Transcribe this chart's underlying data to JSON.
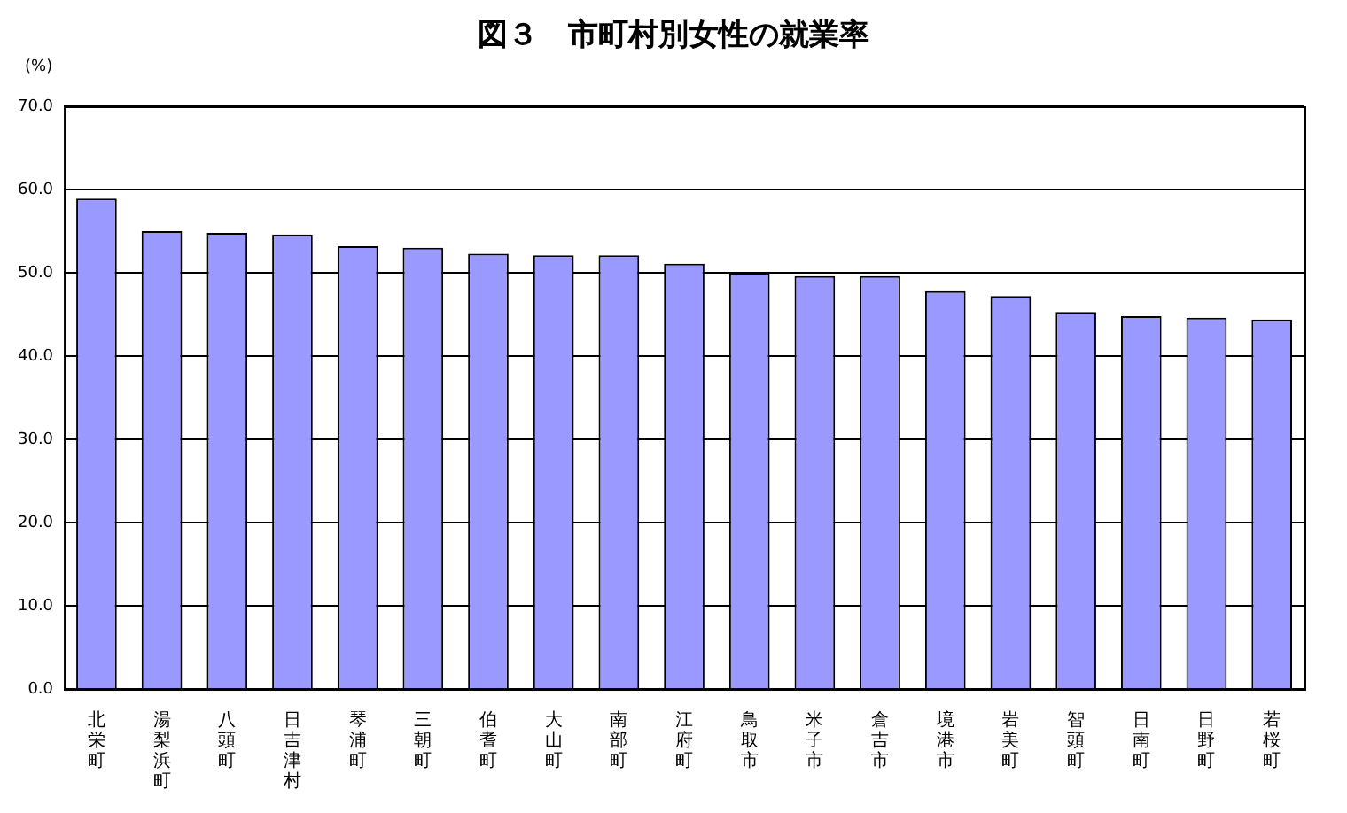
{
  "chart_data": {
    "type": "bar",
    "title": "図３　市町村別女性の就業率",
    "ylabel": "(%)",
    "categories": [
      "北栄町",
      "湯梨浜町",
      "八頭町",
      "日吉津村",
      "琴浦町",
      "三朝町",
      "伯耆町",
      "大山町",
      "南部町",
      "江府町",
      "鳥取市",
      "米子市",
      "倉吉市",
      "境港市",
      "岩美町",
      "智頭町",
      "日南町",
      "日野町",
      "若桜町"
    ],
    "values": [
      58.9,
      55.0,
      54.8,
      54.6,
      53.2,
      53.0,
      52.3,
      52.1,
      52.1,
      51.1,
      50.0,
      49.6,
      49.6,
      47.8,
      47.2,
      45.3,
      44.8,
      44.6,
      44.4
    ],
    "color": "#9999ff",
    "ylim": [
      0,
      70
    ],
    "yticks": [
      {
        "value": 0,
        "label": "0.0"
      },
      {
        "value": 10,
        "label": "10.0"
      },
      {
        "value": 20,
        "label": "20.0"
      },
      {
        "value": 30,
        "label": "30.0"
      },
      {
        "value": 40,
        "label": "40.0"
      },
      {
        "value": 50,
        "label": "50.0"
      },
      {
        "value": 60,
        "label": "60.0"
      },
      {
        "value": 70,
        "label": "70.0"
      }
    ],
    "grid": "y",
    "legend": false
  }
}
